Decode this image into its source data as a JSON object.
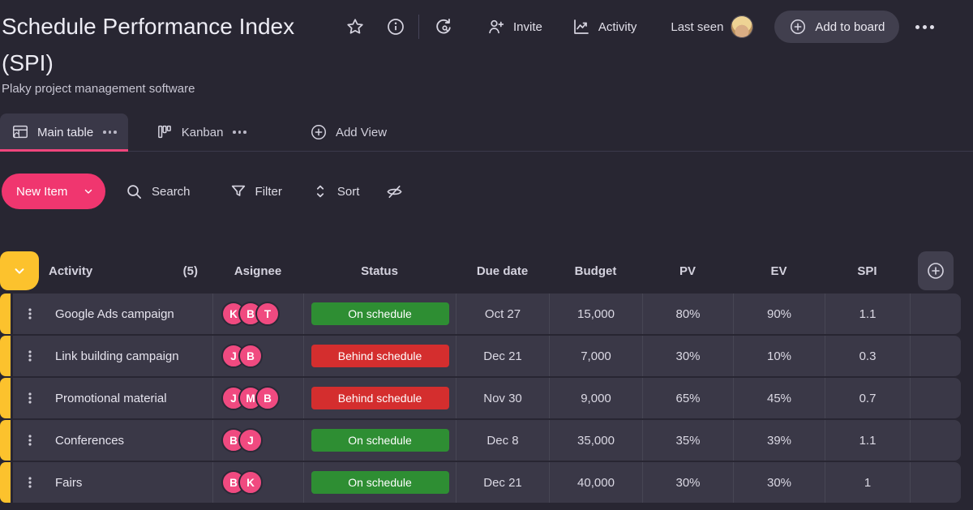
{
  "colors": {
    "accent_pink": "#f0366f",
    "group_yellow": "#fcc22d",
    "status_green": "#2e8e33",
    "status_red": "#d42e2e",
    "row_bg": "#3a3847",
    "page_bg": "#282632"
  },
  "header": {
    "title": "Schedule Performance Index (SPI)",
    "subtitle": "Plaky project management software",
    "invite_label": "Invite",
    "activity_label": "Activity",
    "last_seen_label": "Last seen",
    "add_to_board_label": "Add to board"
  },
  "tabs": {
    "main_table_label": "Main table",
    "kanban_label": "Kanban",
    "add_view_label": "Add View"
  },
  "toolbar": {
    "new_item_label": "New Item",
    "search_label": "Search",
    "filter_label": "Filter",
    "sort_label": "Sort"
  },
  "icons": {
    "star": "star-outline",
    "info": "info-circle",
    "sync": "refresh-arrows",
    "invite": "person-plus",
    "activity": "line-chart",
    "add": "plus-circle",
    "more": "ellipsis",
    "main_table": "table-home",
    "kanban": "kanban-columns",
    "search": "magnifier",
    "filter": "funnel",
    "sort": "up-down-chevrons",
    "hidden_columns": "eye-off",
    "collapse_group": "chevron-down",
    "row_menu": "vertical-dots"
  },
  "table": {
    "columns": [
      "Activity",
      "Asignee",
      "Status",
      "Due date",
      "Budget",
      "PV",
      "EV",
      "SPI"
    ],
    "activity_count": "(5)",
    "rows": [
      {
        "activity": "Google Ads campaign",
        "assignees": [
          "K",
          "B",
          "T"
        ],
        "status": "On schedule",
        "status_type": "green",
        "due_date": "Oct 27",
        "budget": "15,000",
        "pv": "80%",
        "ev": "90%",
        "spi": "1.1"
      },
      {
        "activity": "Link building campaign",
        "assignees": [
          "J",
          "B"
        ],
        "status": "Behind schedule",
        "status_type": "red",
        "due_date": "Dec 21",
        "budget": "7,000",
        "pv": "30%",
        "ev": "10%",
        "spi": "0.3"
      },
      {
        "activity": "Promotional material",
        "assignees": [
          "J",
          "M",
          "B"
        ],
        "status": "Behind schedule",
        "status_type": "red",
        "due_date": "Nov 30",
        "budget": "9,000",
        "pv": "65%",
        "ev": "45%",
        "spi": "0.7"
      },
      {
        "activity": "Conferences",
        "assignees": [
          "B",
          "J"
        ],
        "status": "On schedule",
        "status_type": "green",
        "due_date": "Dec 8",
        "budget": "35,000",
        "pv": "35%",
        "ev": "39%",
        "spi": "1.1"
      },
      {
        "activity": "Fairs",
        "assignees": [
          "B",
          "K"
        ],
        "status": "On schedule",
        "status_type": "green",
        "due_date": "Dec 21",
        "budget": "40,000",
        "pv": "30%",
        "ev": "30%",
        "spi": "1"
      }
    ]
  }
}
